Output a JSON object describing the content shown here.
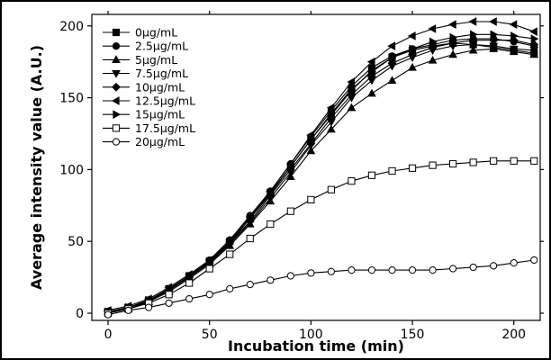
{
  "chart_data": {
    "type": "line",
    "xlabel": "Incubation time (min)",
    "ylabel": "Average intensity value (A.U.)",
    "xlim": [
      -8,
      213
    ],
    "ylim": [
      -5,
      208
    ],
    "xticks": [
      0,
      50,
      100,
      150,
      200
    ],
    "yticks": [
      0,
      50,
      100,
      150,
      200
    ],
    "grid": false,
    "legend_position": "top-left",
    "x": [
      0,
      10,
      20,
      30,
      40,
      50,
      60,
      70,
      80,
      90,
      100,
      110,
      120,
      130,
      140,
      150,
      160,
      170,
      180,
      190,
      200,
      210
    ],
    "series": [
      {
        "name": "0μg/mL",
        "marker": "square-filled",
        "values": [
          1,
          4,
          9,
          17,
          26,
          36,
          50,
          66,
          84,
          102,
          121,
          138,
          155,
          169,
          178,
          183,
          186,
          188,
          187,
          185,
          183,
          181
        ]
      },
      {
        "name": "2.5μg/mL",
        "marker": "circle-filled",
        "values": [
          1,
          4,
          9,
          17,
          26,
          37,
          51,
          68,
          85,
          104,
          123,
          141,
          158,
          171,
          179,
          184,
          187,
          190,
          191,
          191,
          189,
          186
        ]
      },
      {
        "name": "5μg/mL",
        "marker": "triangle-up-filled",
        "values": [
          1,
          3,
          8,
          15,
          24,
          34,
          47,
          62,
          78,
          95,
          113,
          128,
          143,
          153,
          162,
          171,
          176,
          180,
          183,
          184,
          182,
          180
        ]
      },
      {
        "name": "7.5μg/mL",
        "marker": "triangle-down-filled",
        "values": [
          1,
          4,
          8,
          16,
          25,
          35,
          48,
          63,
          80,
          98,
          117,
          133,
          150,
          162,
          172,
          178,
          183,
          186,
          187,
          186,
          184,
          183
        ]
      },
      {
        "name": "10μg/mL",
        "marker": "diamond-filled",
        "values": [
          1,
          4,
          9,
          16,
          25,
          35,
          49,
          64,
          82,
          100,
          118,
          136,
          152,
          165,
          174,
          180,
          185,
          188,
          190,
          190,
          190,
          187
        ]
      },
      {
        "name": "12.5μg/mL",
        "marker": "triangle-left-filled",
        "values": [
          2,
          5,
          10,
          18,
          27,
          37,
          51,
          67,
          85,
          104,
          124,
          143,
          161,
          175,
          186,
          193,
          198,
          201,
          203,
          203,
          201,
          196
        ]
      },
      {
        "name": "15μg/mL",
        "marker": "triangle-right-filled",
        "values": [
          1,
          4,
          9,
          16,
          25,
          36,
          49,
          66,
          83,
          102,
          121,
          139,
          156,
          168,
          178,
          184,
          189,
          192,
          194,
          194,
          193,
          191
        ]
      },
      {
        "name": "17.5μg/mL",
        "marker": "square-open",
        "values": [
          0,
          3,
          7,
          13,
          21,
          31,
          41,
          52,
          62,
          71,
          79,
          86,
          92,
          96,
          99,
          101,
          103,
          104,
          105,
          106,
          106,
          106
        ]
      },
      {
        "name": "20μg/mL",
        "marker": "circle-open",
        "values": [
          -1,
          2,
          4,
          7,
          10,
          13,
          17,
          20,
          23,
          26,
          28,
          29,
          30,
          30,
          30,
          30,
          30,
          31,
          32,
          33,
          35,
          37
        ]
      }
    ]
  }
}
